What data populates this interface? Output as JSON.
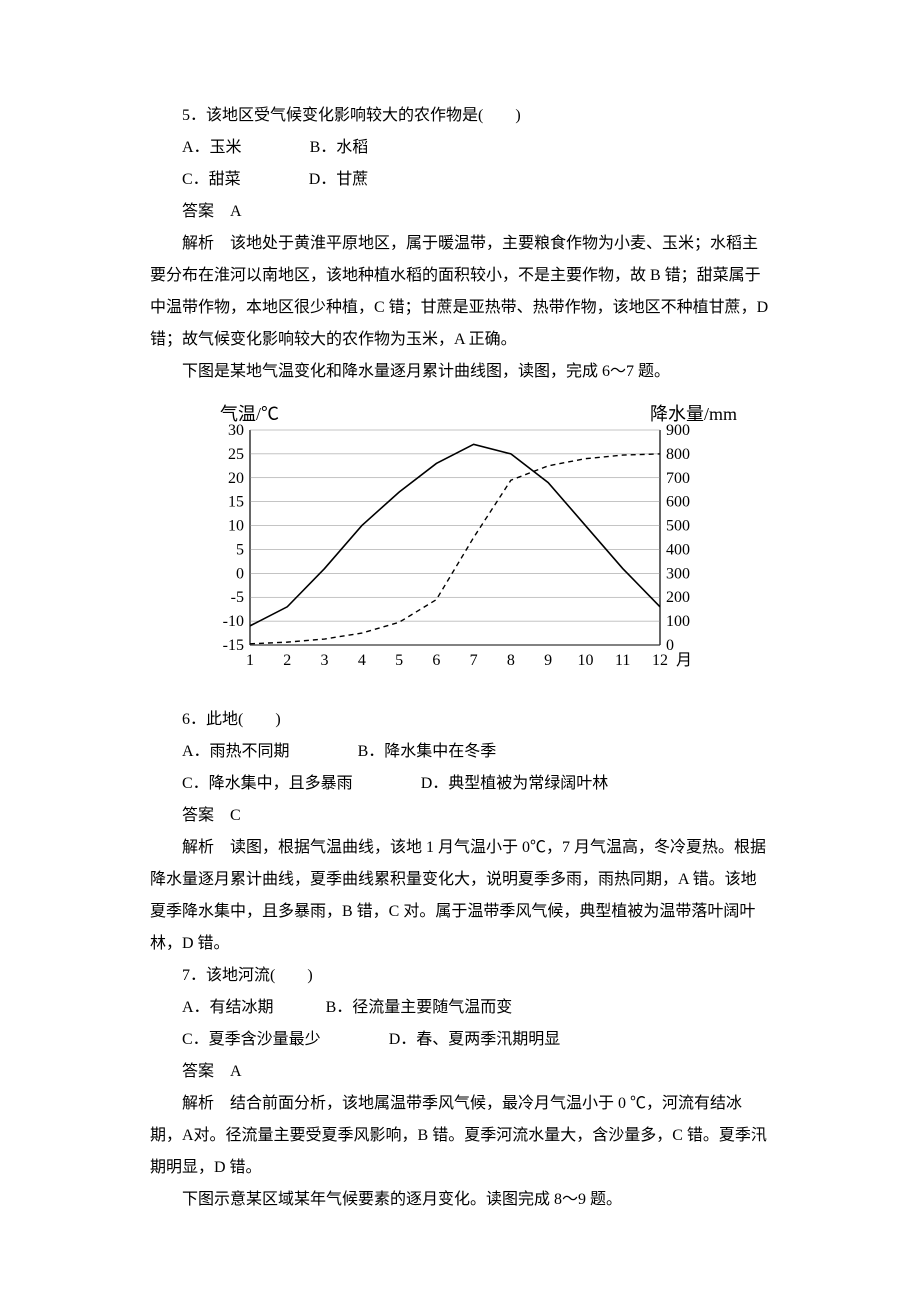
{
  "q5": {
    "stem": "5．该地区受气候变化影响较大的农作物是(　　)",
    "optA": "A．玉米",
    "optB": "B．水稻",
    "optC": "C．甜菜",
    "optD": "D．甘蔗",
    "answer": "答案　A",
    "explain": "解析　该地处于黄淮平原地区，属于暖温带，主要粮食作物为小麦、玉米；水稻主要分布在淮河以南地区，该地种植水稻的面积较小，不是主要作物，故 B 错；甜菜属于中温带作物，本地区很少种植，C 错；甘蔗是亚热带、热带作物，该地区不种植甘蔗，D 错；故气候变化影响较大的农作物为玉米，A 正确。"
  },
  "intro67": "下图是某地气温变化和降水量逐月累计曲线图，读图，完成 6～7 题。",
  "chart": {
    "type": "dual-axis-line",
    "x_label": "月",
    "left_axis_label": "气温/℃",
    "right_axis_label": "降水量/mm",
    "left_ticks": [
      -15,
      -10,
      -5,
      0,
      5,
      10,
      15,
      20,
      25,
      30
    ],
    "right_ticks": [
      0,
      100,
      200,
      300,
      400,
      500,
      600,
      700,
      800,
      900
    ],
    "x_ticks": [
      1,
      2,
      3,
      4,
      5,
      6,
      7,
      8,
      9,
      10,
      11,
      12
    ],
    "temp_values": [
      -11,
      -7,
      1,
      10,
      17,
      23,
      27,
      25,
      19,
      10,
      1,
      -7
    ],
    "precip_cum": [
      5,
      12,
      25,
      50,
      95,
      190,
      450,
      690,
      750,
      780,
      795,
      800
    ],
    "line_color": "#000000",
    "dash_color": "#000000",
    "bg": "#ffffff",
    "axis_color": "#000000",
    "grid_color": "#999999",
    "axis_fontsize": 18,
    "tick_fontsize": 16
  },
  "q6": {
    "stem": "6．此地(　　)",
    "optA": "A．雨热不同期",
    "optB": "B．降水集中在冬季",
    "optC": "C．降水集中，且多暴雨",
    "optD": "D．典型植被为常绿阔叶林",
    "answer": "答案　C",
    "explain": "解析　读图，根据气温曲线，该地 1 月气温小于 0℃，7 月气温高，冬冷夏热。根据降水量逐月累计曲线，夏季曲线累积量变化大，说明夏季多雨，雨热同期，A 错。该地夏季降水集中，且多暴雨，B 错，C 对。属于温带季风气候，典型植被为温带落叶阔叶林，D 错。"
  },
  "q7": {
    "stem": "7．该地河流(　　)",
    "optA": "A．有结冰期",
    "optB": "B．径流量主要随气温而变",
    "optC": "C．夏季含沙量最少",
    "optD": "D．春、夏两季汛期明显",
    "answer": "答案　A",
    "explain": "解析　结合前面分析，该地属温带季风气候，最冷月气温小于 0 ℃，河流有结冰期，A对。径流量主要受夏季风影响，B 错。夏季河流水量大，含沙量多，C 错。夏季汛期明显，D 错。"
  },
  "intro89": "下图示意某区域某年气候要素的逐月变化。读图完成 8～9 题。"
}
